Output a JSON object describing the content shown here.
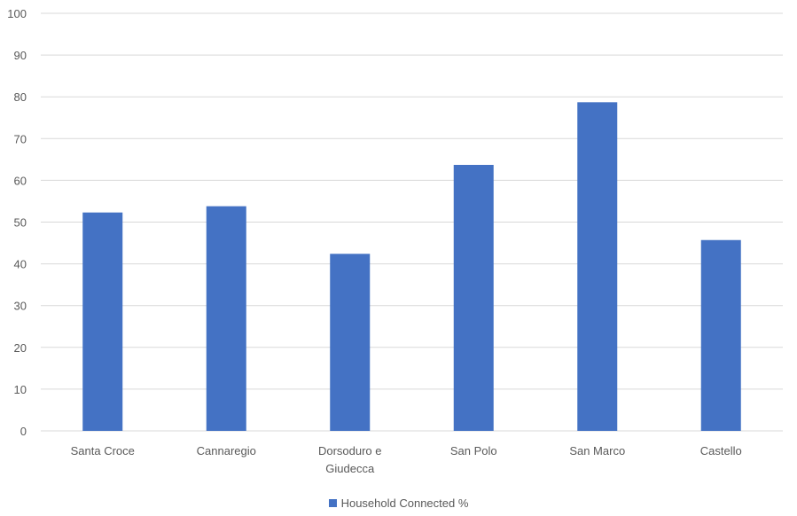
{
  "chart_data": {
    "type": "bar",
    "title": "",
    "xlabel": "",
    "ylabel": "",
    "categories": [
      [
        "Santa Croce"
      ],
      [
        "Cannaregio"
      ],
      [
        "Dorsoduro e",
        "Giudecca"
      ],
      [
        "San Polo"
      ],
      [
        "San Marco"
      ],
      [
        "Castello"
      ]
    ],
    "series": [
      {
        "name": "Household Connected %",
        "color": "#4472C4",
        "values": [
          52.3,
          53.8,
          42.4,
          63.7,
          78.7,
          45.7
        ]
      }
    ],
    "ylim": [
      0,
      100
    ],
    "yticks": [
      "0",
      "10",
      "20",
      "30",
      "40",
      "50",
      "60",
      "70",
      "80",
      "90",
      "100"
    ],
    "grid": true,
    "gridColor": "#d9d9d9",
    "legend_position": "bottom"
  }
}
